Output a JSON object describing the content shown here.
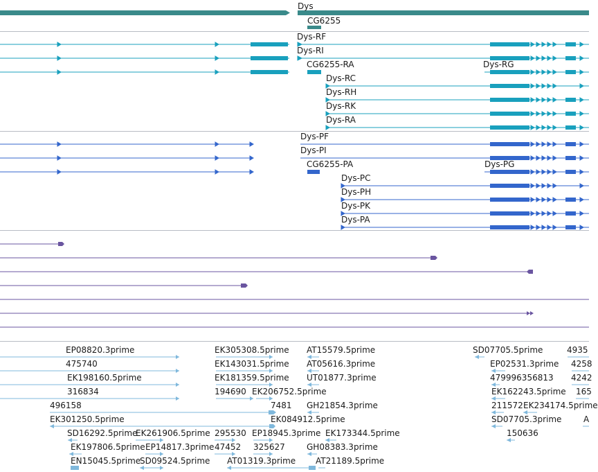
{
  "colors": {
    "gene": "#3a8a8a",
    "transcript": "#19a0bd",
    "protein": "#3366cc",
    "alignment": "#6a55a0",
    "est": "#7fb8dc",
    "separator": "#b8bcc4"
  },
  "tracks": {
    "genes": {
      "labels": [
        "Dys",
        "CG6255"
      ]
    },
    "transcripts": {
      "labels": [
        "Dys-RF",
        "Dys-RI",
        "CG6255-RA",
        "Dys-RG",
        "Dys-RC",
        "Dys-RH",
        "Dys-RK",
        "Dys-RA"
      ]
    },
    "proteins": {
      "labels": [
        "Dys-PF",
        "Dys-PI",
        "CG6255-PA",
        "Dys-PG",
        "Dys-PC",
        "Dys-PH",
        "Dys-PK",
        "Dys-PA"
      ]
    },
    "ests": {
      "labels": [
        "EP08820.3prime",
        "EK305308.5prime",
        "AT15579.5prime",
        "SD07705.5prime",
        "4935",
        "475740",
        "EK143031.5prime",
        "AT05616.3prime",
        "EP02531.3prime",
        "4258",
        "EK198160.5prime",
        "EK181359.5prime",
        "UT01877.3prime",
        "479996356813",
        "4242",
        "316834",
        "194690",
        "EK206752.5prime",
        "EK162243.5prime",
        "165",
        "496158",
        "7481",
        "GH21854.3prime",
        "211572",
        "EK234174.5prime",
        "EK301250.5prime",
        "EK084912.5prime",
        "SD07705.3prime",
        "A",
        "SD16292.5prime",
        "EK261906.5prime",
        "295530",
        "EP18945.3prime",
        "EK173344.5prime",
        "150636",
        "EK197806.5prime",
        "EP14817.3prime",
        "47452",
        "325627",
        "GH08383.3prime",
        "EN15045.5prime",
        "SD09524.5prime",
        "AT01319.3prime",
        "AT21189.5prime"
      ]
    }
  }
}
